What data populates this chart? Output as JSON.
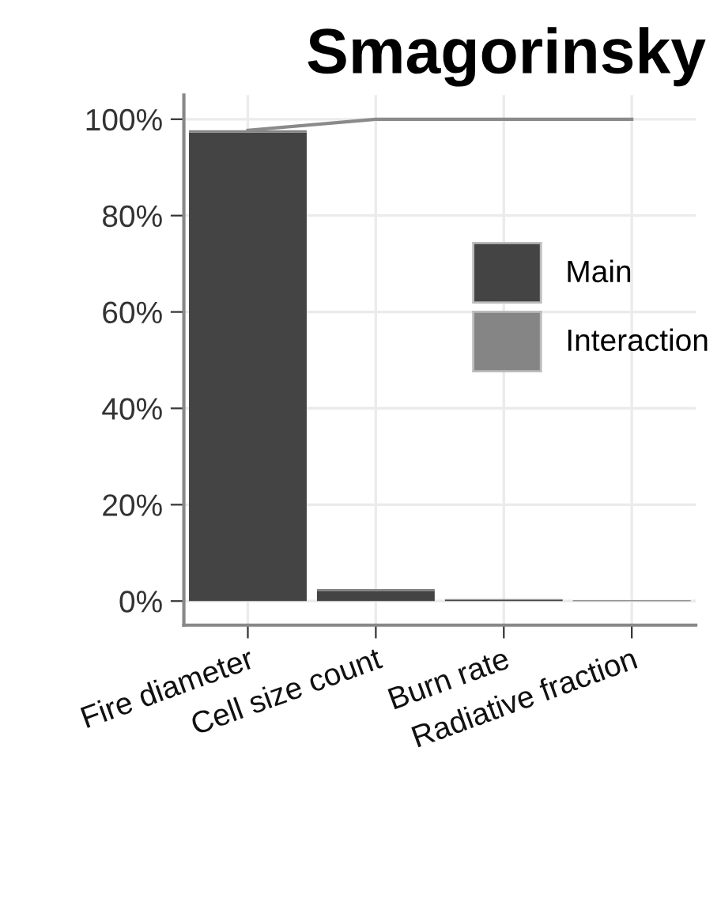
{
  "chart_data": {
    "type": "bar",
    "title": "Smagorinsky",
    "categories": [
      "Fire diameter",
      "Cell size count",
      "Burn rate",
      "Radiative fraction"
    ],
    "stacked": true,
    "series": [
      {
        "name": "Main",
        "color": "#444444",
        "values": [
          97.2,
          2.0,
          0.3,
          0.1
        ]
      },
      {
        "name": "Interaction",
        "color": "#858585",
        "values": [
          0.5,
          0.5,
          0.1,
          0.1
        ]
      },
      {
        "type": "line",
        "color": "#8a8a8a",
        "values": [
          97.7,
          100,
          100,
          100
        ]
      }
    ],
    "ylim": [
      -5,
      105
    ],
    "yticks": [
      {
        "value": 0,
        "label": "0%"
      },
      {
        "value": 20,
        "label": "20%"
      },
      {
        "value": 40,
        "label": "40%"
      },
      {
        "value": 60,
        "label": "60%"
      },
      {
        "value": 80,
        "label": "80%"
      },
      {
        "value": 100,
        "label": "100%"
      }
    ],
    "grid": true,
    "legend": "right"
  }
}
